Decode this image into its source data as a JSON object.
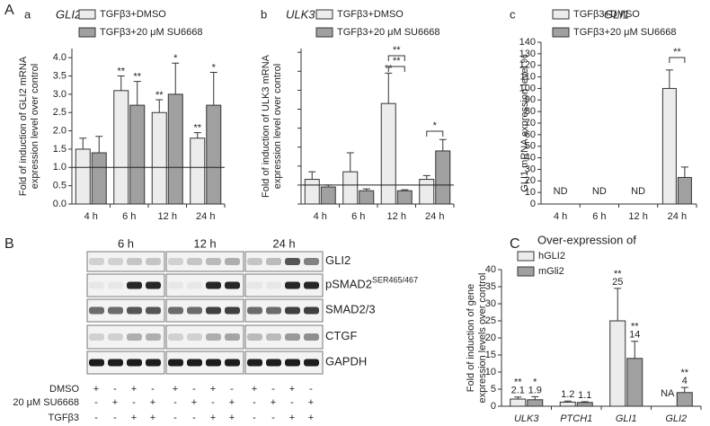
{
  "chart_data": [
    {
      "type": "bar",
      "figure_label": "A",
      "label": "a",
      "title": "GLI2",
      "ylabel": [
        "Fold of induction of GLI2 mRNA",
        "expression level over control"
      ],
      "categories": [
        "4 h",
        "6 h",
        "12 h",
        "24 h"
      ],
      "ylim": [
        0,
        4.25
      ],
      "yticks": [
        {
          "value": 0,
          "label": "0.0"
        },
        {
          "value": 0.5,
          "label": "0.5"
        },
        {
          "value": 1,
          "label": "1.0"
        },
        {
          "value": 1.5,
          "label": "1.5"
        },
        {
          "value": 2,
          "label": "2.0"
        },
        {
          "value": 2.5,
          "label": "2.5"
        },
        {
          "value": 3,
          "label": "3.0"
        },
        {
          "value": 3.5,
          "label": "3.5"
        },
        {
          "value": 4,
          "label": "4.0"
        }
      ],
      "hline": 1,
      "series": [
        {
          "name": "TGFβ3+DMSO",
          "color": "#ececec",
          "values": [
            1.5,
            3.1,
            2.5,
            1.8
          ],
          "errors": [
            0.3,
            0.4,
            0.35,
            0.15
          ],
          "stars": [
            null,
            "**",
            "**",
            "**"
          ]
        },
        {
          "name": "TGFβ3+20 μM SU6668",
          "color": "#a0a0a0",
          "values": [
            1.4,
            2.7,
            3.0,
            2.7
          ],
          "errors": [
            0.45,
            0.65,
            0.85,
            0.9
          ],
          "stars": [
            null,
            "**",
            "*",
            "*"
          ]
        }
      ]
    },
    {
      "type": "bar",
      "label": "b",
      "title": "ULK3",
      "ylabel": [
        "Fold of induction of ULK3 mRNA",
        "expression level over control"
      ],
      "categories": [
        "4 h",
        "6 h",
        "12 h",
        "24 h"
      ],
      "ylim": [
        0,
        8.2
      ],
      "yticks": [
        0,
        1,
        2,
        3,
        4,
        5,
        6,
        7,
        8
      ],
      "show_tick_labels": false,
      "hline": 1,
      "series": [
        {
          "name": "TGFβ3+DMSO",
          "color": "#ececec",
          "values": [
            1.3,
            1.7,
            5.3,
            1.3
          ],
          "errors": [
            0.4,
            1.0,
            1.6,
            0.2
          ],
          "stars": [
            null,
            null,
            "**",
            null
          ]
        },
        {
          "name": "TGFβ3+20 μM SU6668",
          "color": "#a0a0a0",
          "values": [
            0.9,
            0.7,
            0.7,
            2.8
          ],
          "errors": [
            0.1,
            0.1,
            0.05,
            0.6
          ],
          "stars": [
            null,
            null,
            null,
            null
          ]
        }
      ],
      "brackets": [
        {
          "label": "**"
        },
        {
          "label": "**"
        },
        {
          "label": "*"
        }
      ]
    },
    {
      "type": "bar",
      "label": "c",
      "title": "GLI1",
      "ylabel": [
        "GLI1 mRNA expression level %"
      ],
      "categories": [
        "4 h",
        "6 h",
        "12 h",
        "24 h"
      ],
      "ylim": [
        0,
        140
      ],
      "yticks": [
        0,
        10,
        20,
        30,
        40,
        50,
        60,
        70,
        80,
        90,
        100,
        110,
        120,
        130,
        140
      ],
      "series": [
        {
          "name": "TGFβ3+DMSO",
          "color": "#ececec",
          "values": [
            null,
            null,
            null,
            100
          ],
          "errors": [
            null,
            null,
            null,
            16
          ],
          "value_labels": [
            "ND",
            "ND",
            "ND",
            null
          ]
        },
        {
          "name": "TGFβ3+20 μM SU6668",
          "color": "#a0a0a0",
          "values": [
            null,
            null,
            null,
            23
          ],
          "errors": [
            null,
            null,
            null,
            9
          ]
        }
      ],
      "brackets": [
        {
          "label": "**"
        }
      ]
    },
    {
      "type": "bar",
      "figure_label": "C",
      "legend_title": "Over-expression of",
      "ylabel": [
        "Fold of induction of gene",
        "expression levels over control"
      ],
      "categories": [
        "ULK3",
        "PTCH1",
        "GLI1",
        "GLI2"
      ],
      "ylim": [
        0,
        40
      ],
      "yticks": [
        0,
        5,
        10,
        15,
        20,
        25,
        30,
        35,
        40
      ],
      "series": [
        {
          "name": "hGLI2",
          "color": "#ececec",
          "values": [
            2.1,
            1.2,
            25,
            null
          ],
          "errors": [
            0.6,
            0.3,
            9.5,
            null
          ],
          "value_labels": [
            "2.1",
            "1.2",
            "25",
            "NA"
          ],
          "stars": [
            "**",
            null,
            "**",
            null
          ]
        },
        {
          "name": "mGli2",
          "color": "#a0a0a0",
          "values": [
            1.9,
            1.1,
            14,
            4
          ],
          "errors": [
            0.9,
            0.2,
            5,
            1.5
          ],
          "value_labels": [
            "1.9",
            "1.1",
            "14",
            "4"
          ],
          "stars": [
            "*",
            null,
            "**",
            "**"
          ]
        }
      ]
    }
  ],
  "blot": {
    "figure_label": "B",
    "times": [
      "6 h",
      "12 h",
      "24 h"
    ],
    "rows": [
      "GLI2",
      "pSMAD2",
      "SMAD2/3",
      "CTGF",
      "GAPDH"
    ],
    "superscript": "SER465/467",
    "treatments": [
      {
        "name": "DMSO",
        "signs": [
          "+",
          "-",
          "+",
          "-",
          "+",
          "-",
          "+",
          "-",
          "+",
          "-",
          "+",
          "-"
        ]
      },
      {
        "name": "20 μM SU6668",
        "signs": [
          "-",
          "+",
          "-",
          "+",
          "-",
          "+",
          "-",
          "+",
          "-",
          "+",
          "-",
          "+"
        ]
      },
      {
        "name": "TGFβ3",
        "signs": [
          "-",
          "-",
          "+",
          "+",
          "-",
          "-",
          "+",
          "+",
          "-",
          "-",
          "+",
          "+"
        ]
      }
    ]
  }
}
